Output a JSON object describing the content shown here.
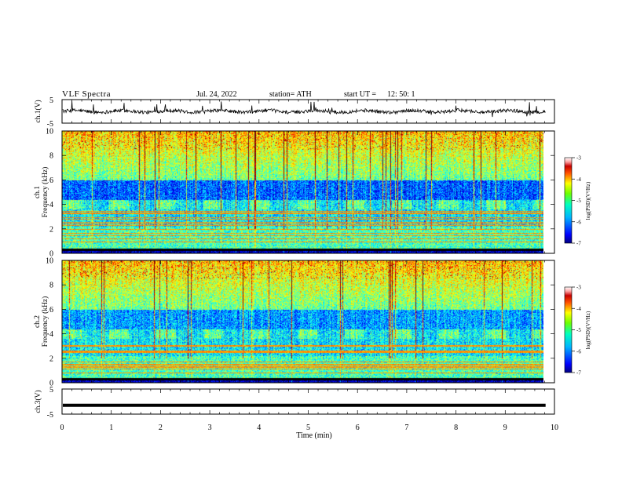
{
  "header": {
    "title": "VLF  Spectra",
    "date": "Jul.  24,  2022",
    "station": "station= ATH",
    "start_label": "start  UT  =",
    "start_time": "12: 50: 1"
  },
  "chart_data": [
    {
      "type": "line",
      "name": "ch1-waveform",
      "ylabel": "ch.1(V)",
      "ylim": [
        -5,
        5
      ],
      "yticks": [
        "5",
        "-5"
      ],
      "xlim": [
        0,
        10
      ],
      "baseline": 0,
      "noise_amplitude": 1.5
    },
    {
      "type": "heatmap",
      "name": "ch1-spectrogram",
      "ylabel": "ch.1\nFrequency (kHz)",
      "ylabel_line1": "ch.1",
      "ylabel_line2": "Frequency  (kHz)",
      "ylim": [
        0,
        10
      ],
      "yticks": [
        "0",
        "2",
        "4",
        "6",
        "8",
        "10"
      ],
      "xlim": [
        0,
        10
      ],
      "colorbar": {
        "label": "log(PSD)(V²/Hz)",
        "range": [
          -7,
          -3
        ],
        "ticks": [
          "-3",
          "-4",
          "-5",
          "-6",
          "-7"
        ]
      }
    },
    {
      "type": "heatmap",
      "name": "ch2-spectrogram",
      "ylabel": "ch.2\nFrequency (kHz)",
      "ylabel_line1": "ch.2",
      "ylabel_line2": "Frequency  (kHz)",
      "ylim": [
        0,
        10
      ],
      "yticks": [
        "0",
        "2",
        "4",
        "6",
        "8",
        "10"
      ],
      "xlim": [
        0,
        10
      ],
      "colorbar": {
        "label": "log(PSD)(V²/Hz)",
        "range": [
          -7,
          -3
        ],
        "ticks": [
          "-3",
          "-4",
          "-5",
          "-6",
          "-7"
        ]
      }
    },
    {
      "type": "line",
      "name": "ch3-waveform",
      "ylabel": "ch.3(V)",
      "ylim": [
        -5,
        5
      ],
      "yticks": [
        "5",
        "-5"
      ],
      "xlim": [
        0,
        10
      ],
      "baseline": -1.5
    }
  ],
  "xaxis": {
    "label": "Time  (min)",
    "ticks": [
      "0",
      "1",
      "2",
      "3",
      "4",
      "5",
      "6",
      "7",
      "8",
      "9",
      "10"
    ],
    "range": [
      0,
      10
    ],
    "data_end": 9.82
  },
  "colors": {
    "waveform": "#000000",
    "jet_low": "#00007f",
    "jet_high": "#7f0000",
    "colorbar_top": "#ffffff"
  }
}
